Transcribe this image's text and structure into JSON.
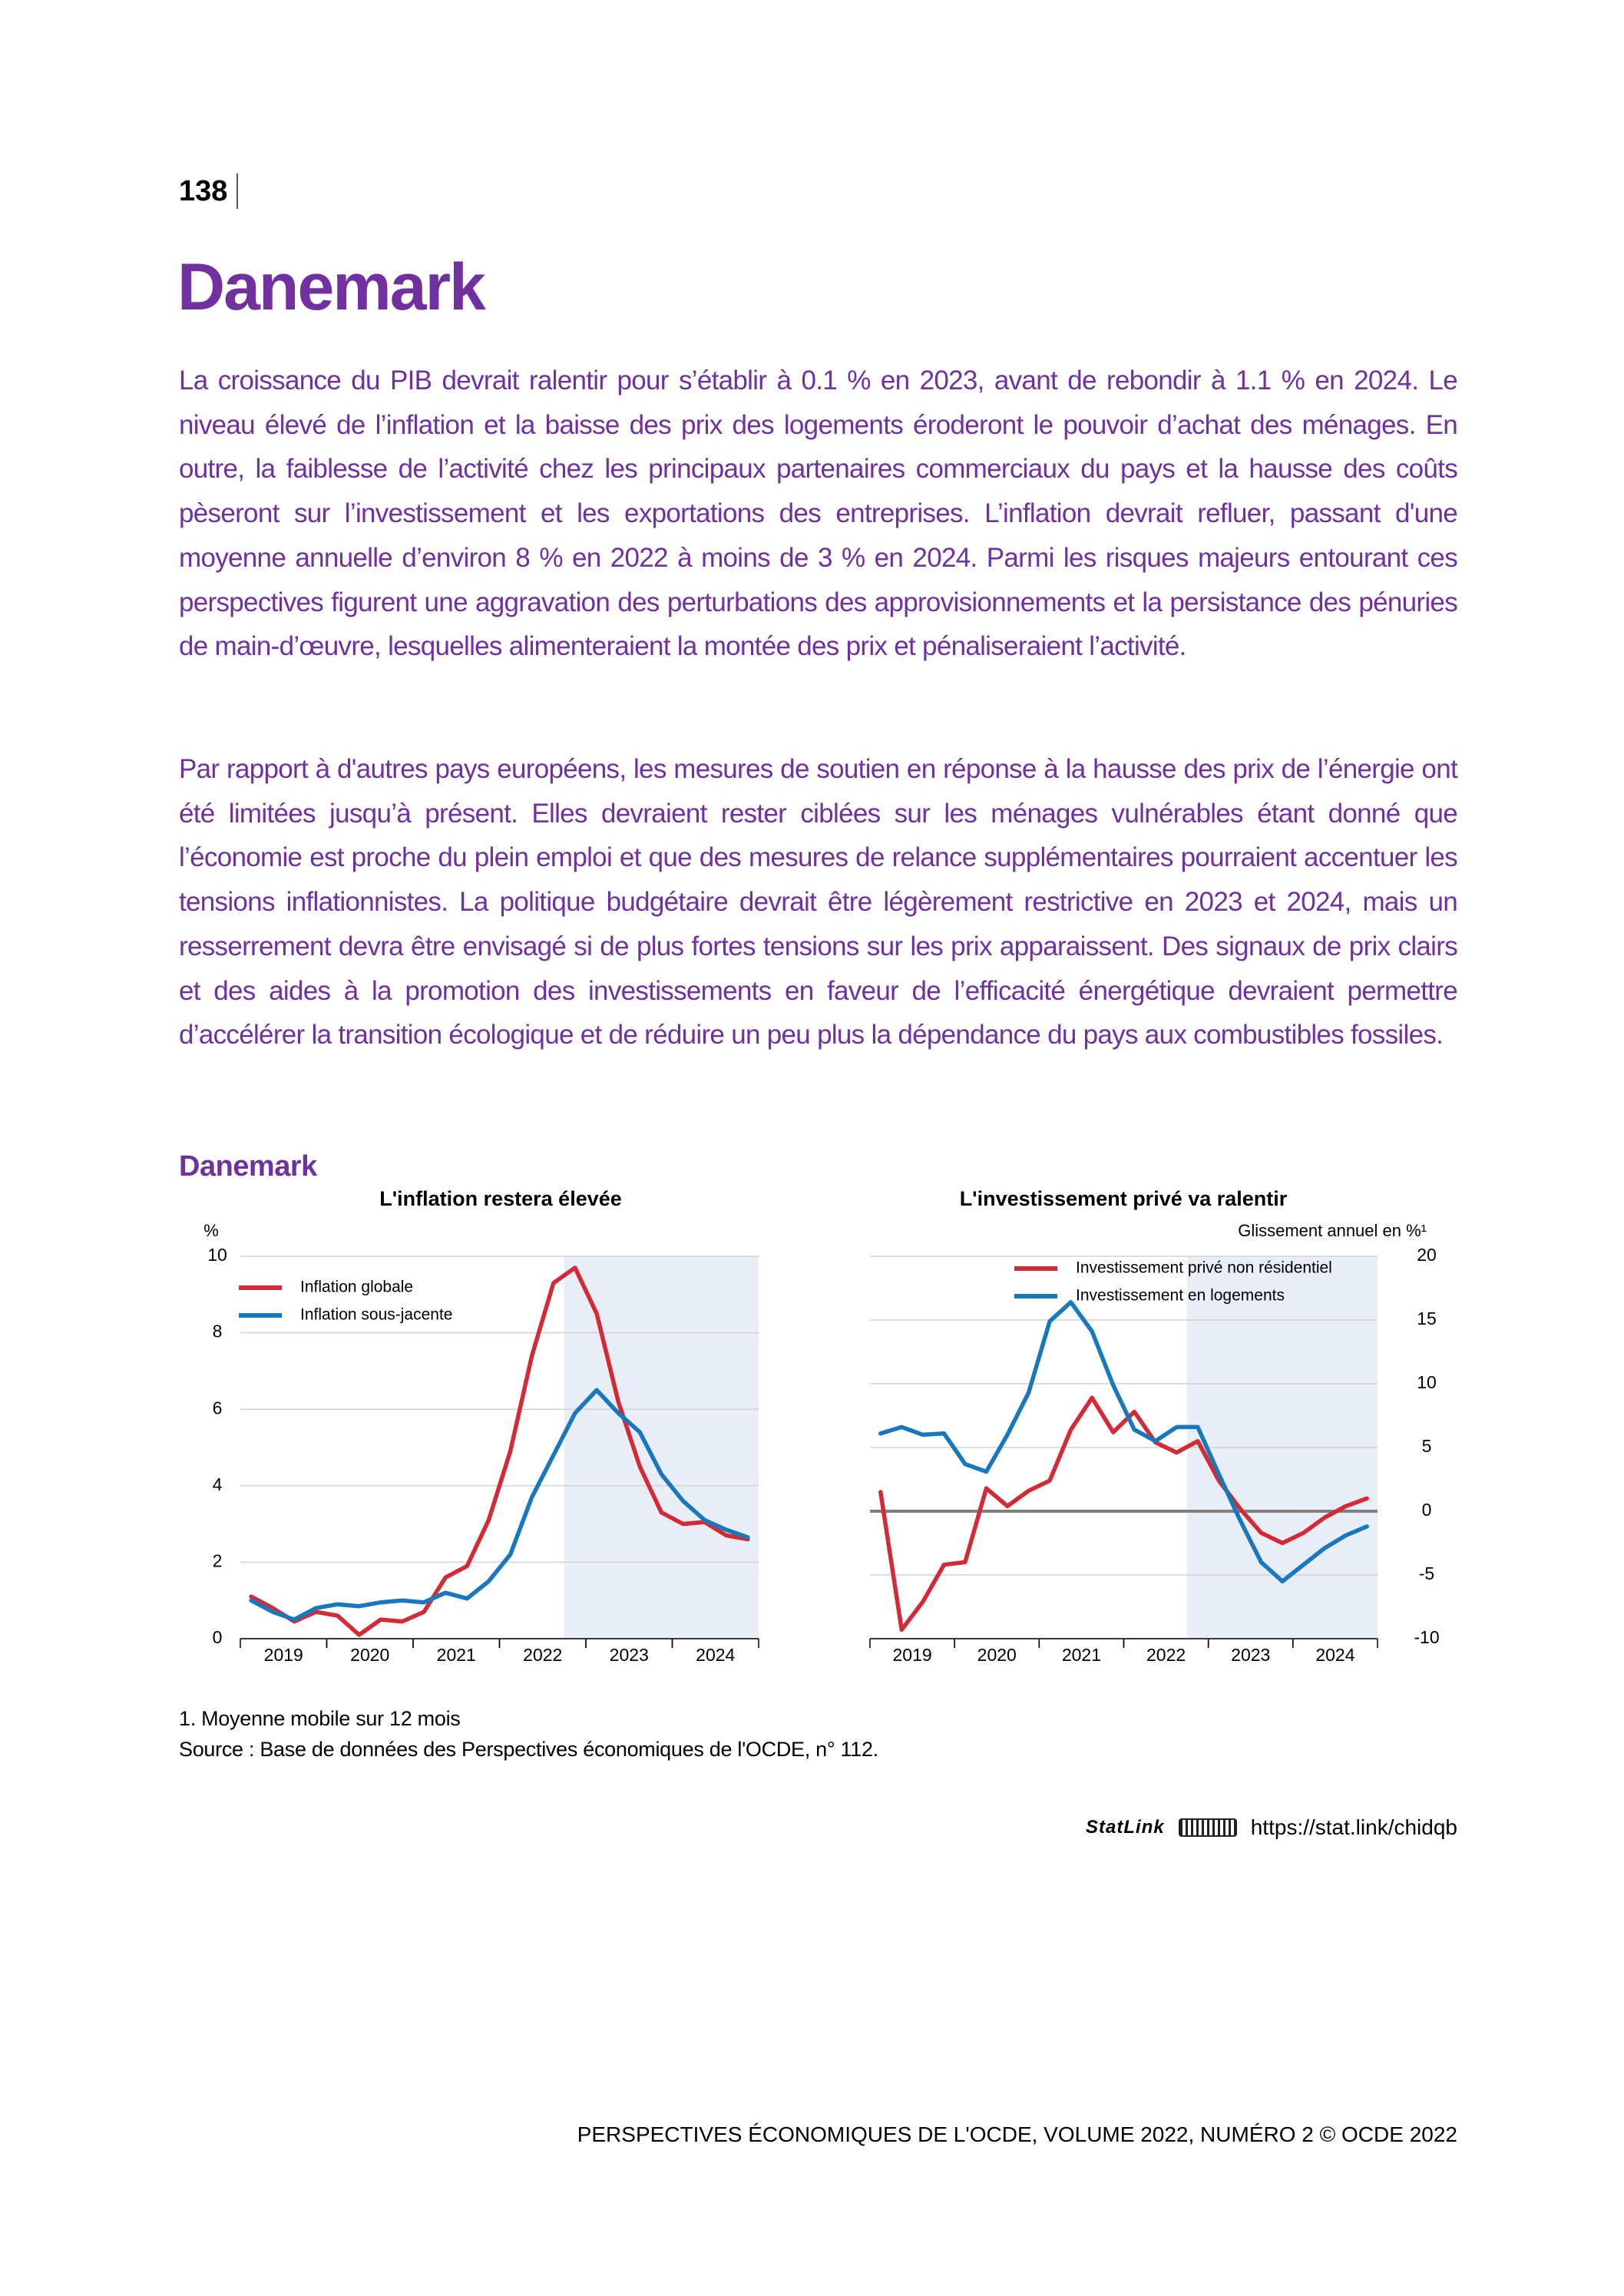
{
  "header": {
    "page_number": "138"
  },
  "title": "Danemark",
  "paragraphs": [
    "La croissance du PIB devrait ralentir pour s’établir à 0.1 % en 2023, avant de rebondir à 1.1 % en 2024. Le niveau élevé de l’inflation et la baisse des prix des logements éroderont le pouvoir d’achat des ménages. En outre, la faiblesse de l’activité chez les principaux partenaires commerciaux du pays et la hausse des coûts pèseront sur l’investissement et les exportations des entreprises. L’inflation devrait refluer, passant d'une moyenne annuelle d’environ 8 % en 2022 à moins de 3 % en 2024. Parmi les risques majeurs entourant ces perspectives figurent une aggravation des perturbations des approvisionnements et la persistance des pénuries de main-d’œuvre, lesquelles alimenteraient la montée des prix et pénaliseraient l’activité.",
    "Par rapport à d'autres pays européens, les mesures de soutien en réponse à la hausse des prix de l’énergie ont été limitées jusqu’à présent. Elles devraient rester ciblées sur les ménages vulnérables étant donné que l’économie est proche du plein emploi et que des mesures de relance supplémentaires pourraient accentuer les tensions inflationnistes. La politique budgétaire devrait être légèrement restrictive en 2023 et 2024, mais un resserrement devra être envisagé si de plus fortes tensions sur les prix apparaissent. Des signaux de prix clairs et des aides à la promotion des investissements en faveur de l’efficacité énergétique devraient permettre d’accélérer la transition écologique et de réduire un peu plus la dépendance du pays aux combustibles fossiles."
  ],
  "figure": {
    "title": "Danemark"
  },
  "chart_data": [
    {
      "type": "line",
      "title": "L'inflation restera élevée",
      "y_label": "%",
      "y_axis_side": "left",
      "x": [
        2019.125,
        2019.375,
        2019.625,
        2019.875,
        2020.125,
        2020.375,
        2020.625,
        2020.875,
        2021.125,
        2021.375,
        2021.625,
        2021.875,
        2022.125,
        2022.375,
        2022.625,
        2022.875,
        2023.125,
        2023.375,
        2023.625,
        2023.875,
        2024.125,
        2024.375,
        2024.625,
        2024.875
      ],
      "xlim": [
        2019,
        2025
      ],
      "xticks": [
        {
          "value": 2019.5,
          "label": "2019"
        },
        {
          "value": 2020.5,
          "label": "2020"
        },
        {
          "value": 2021.5,
          "label": "2021"
        },
        {
          "value": 2022.5,
          "label": "2022"
        },
        {
          "value": 2023.5,
          "label": "2023"
        },
        {
          "value": 2024.5,
          "label": "2024"
        }
      ],
      "ylim": [
        0,
        10
      ],
      "yticks": [
        0,
        2,
        4,
        6,
        8,
        10
      ],
      "grid": true,
      "shade_from": 2022.75,
      "legend": "upper left",
      "series": [
        {
          "name": "Inflation globale",
          "color": "#d42a35",
          "values": [
            1.1,
            0.8,
            0.45,
            0.7,
            0.6,
            0.1,
            0.5,
            0.45,
            0.7,
            1.6,
            1.9,
            3.1,
            4.9,
            7.4,
            9.3,
            9.7,
            8.5,
            6.2,
            4.5,
            3.3,
            3.0,
            3.05,
            2.7,
            2.6
          ]
        },
        {
          "name": "Inflation sous-jacente",
          "color": "#1878bd",
          "values": [
            1.0,
            0.7,
            0.5,
            0.8,
            0.9,
            0.85,
            0.95,
            1.0,
            0.95,
            1.2,
            1.05,
            1.5,
            2.2,
            3.7,
            4.8,
            5.9,
            6.5,
            5.9,
            5.4,
            4.3,
            3.6,
            3.1,
            2.85,
            2.65
          ]
        }
      ]
    },
    {
      "type": "line",
      "title": "L'investissement privé va ralentir",
      "y_label": "Glissement annuel en %¹",
      "y_axis_side": "right",
      "x": [
        2019.125,
        2019.375,
        2019.625,
        2019.875,
        2020.125,
        2020.375,
        2020.625,
        2020.875,
        2021.125,
        2021.375,
        2021.625,
        2021.875,
        2022.125,
        2022.375,
        2022.625,
        2022.875,
        2023.125,
        2023.375,
        2023.625,
        2023.875,
        2024.125,
        2024.375,
        2024.625,
        2024.875
      ],
      "xlim": [
        2019,
        2025
      ],
      "xticks": [
        {
          "value": 2019.5,
          "label": "2019"
        },
        {
          "value": 2020.5,
          "label": "2020"
        },
        {
          "value": 2021.5,
          "label": "2021"
        },
        {
          "value": 2022.5,
          "label": "2022"
        },
        {
          "value": 2023.5,
          "label": "2023"
        },
        {
          "value": 2024.5,
          "label": "2024"
        }
      ],
      "ylim": [
        -10,
        20
      ],
      "yticks": [
        -10,
        -5,
        0,
        5,
        10,
        15,
        20
      ],
      "grid": true,
      "zero_line": true,
      "shade_from": 2022.75,
      "legend": "upper center",
      "series": [
        {
          "name": "Investissement privé non résidentiel",
          "color": "#d42a35",
          "values": [
            1.5,
            -9.3,
            -7.1,
            -4.2,
            -4.0,
            1.8,
            0.4,
            1.6,
            2.4,
            6.4,
            8.9,
            6.2,
            7.8,
            5.4,
            4.6,
            5.5,
            2.4,
            0.2,
            -1.7,
            -2.5,
            -1.7,
            -0.5,
            0.4,
            1.0
          ]
        },
        {
          "name": "Investissement en logements",
          "color": "#1878bd",
          "values": [
            6.1,
            6.6,
            6.0,
            6.1,
            3.7,
            3.1,
            6.0,
            9.3,
            14.9,
            16.4,
            14.1,
            9.9,
            6.4,
            5.5,
            6.6,
            6.6,
            2.9,
            -0.7,
            -4.0,
            -5.5,
            -4.2,
            -2.9,
            -1.9,
            -1.2
          ]
        }
      ]
    }
  ],
  "notes": [
    "1. Moyenne mobile sur 12 mois",
    "Source : Base de données des Perspectives économiques de l'OCDE, n° 112."
  ],
  "statlink": {
    "label": "StatLink",
    "url": "https://stat.link/chidqb"
  },
  "footer": "PERSPECTIVES ÉCONOMIQUES DE L'OCDE, VOLUME 2022, NUMÉRO 2 © OCDE 2022"
}
